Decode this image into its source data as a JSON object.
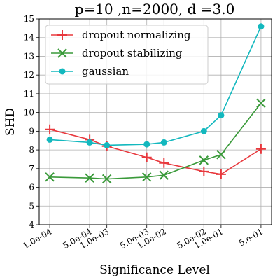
{
  "chart_data": {
    "type": "line",
    "title": "p=10 ,n=2000, d =3.0",
    "xlabel": "Significance Level",
    "ylabel": "SHD",
    "x_scale": "log",
    "x": [
      0.0001,
      0.0005,
      0.001,
      0.005,
      0.01,
      0.05,
      0.1,
      0.5
    ],
    "xtick_labels": [
      "1.0e-04",
      "5.0e-04",
      "1.0e-03",
      "5.0e-03",
      "1.0e-02",
      "5.0e-02",
      "1.0e-01",
      "5.e-01"
    ],
    "ylim": [
      4,
      15
    ],
    "yticks": [
      4,
      5,
      6,
      7,
      8,
      9,
      10,
      11,
      12,
      13,
      14,
      15
    ],
    "grid": true,
    "legend_position": "top-left",
    "series": [
      {
        "name": "dropout normalizing",
        "marker": "plus",
        "color": "#e8383d",
        "values": [
          9.1,
          8.55,
          8.2,
          7.6,
          7.3,
          6.85,
          6.7,
          8.05
        ]
      },
      {
        "name": "dropout stabilizing",
        "marker": "x",
        "color": "#3a9a3a",
        "values": [
          6.55,
          6.5,
          6.45,
          6.55,
          6.65,
          7.45,
          7.75,
          10.5
        ]
      },
      {
        "name": "gaussian",
        "marker": "circle",
        "color": "#13b8be",
        "values": [
          8.55,
          8.4,
          8.25,
          8.3,
          8.4,
          9.0,
          9.85,
          14.6
        ]
      }
    ]
  }
}
